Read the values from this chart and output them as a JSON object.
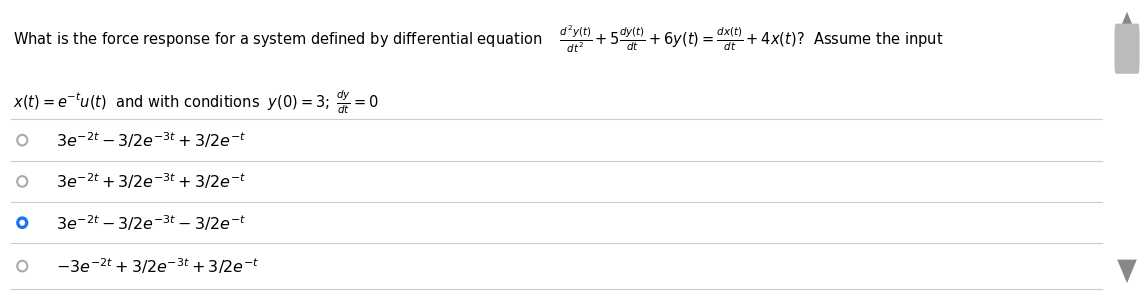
{
  "background_color": "#ffffff",
  "question_line1": "What is the force response for a system defined by differential equation",
  "equation_main": "$\\frac{d^2y(t)}{dt^2} + 5\\frac{dy(t)}{dt} + 6y(t) = \\frac{dx(t)}{dt} + 4x(t)$?  Assume the input",
  "question_line2": "$x(t) = e^{-t}u(t)$  and with conditions  $y(0) = 3;\\; \\frac{dy}{dt} = 0$",
  "options": [
    "$3e^{-2t} - 3/2e^{-3t} + 3/2e^{-t}$",
    "$3e^{-2t} + 3/2e^{-3t} + 3/2e^{-t}$",
    "$3e^{-2t} - 3/2e^{-3t} - 3/2e^{-t}$",
    "$-3e^{-2t} + 3/2e^{-3t} + 3/2e^{-t}$"
  ],
  "selected_option": 2,
  "text_color": "#000000",
  "radio_unselected_color": "#aaaaaa",
  "radio_selected_color": "#1a73e8",
  "divider_color": "#cccccc",
  "font_size_question": 10.5,
  "font_size_option": 11.5,
  "scrollbar_bg": "#f0f0f0",
  "scrollbar_thumb": "#bbbbbb"
}
